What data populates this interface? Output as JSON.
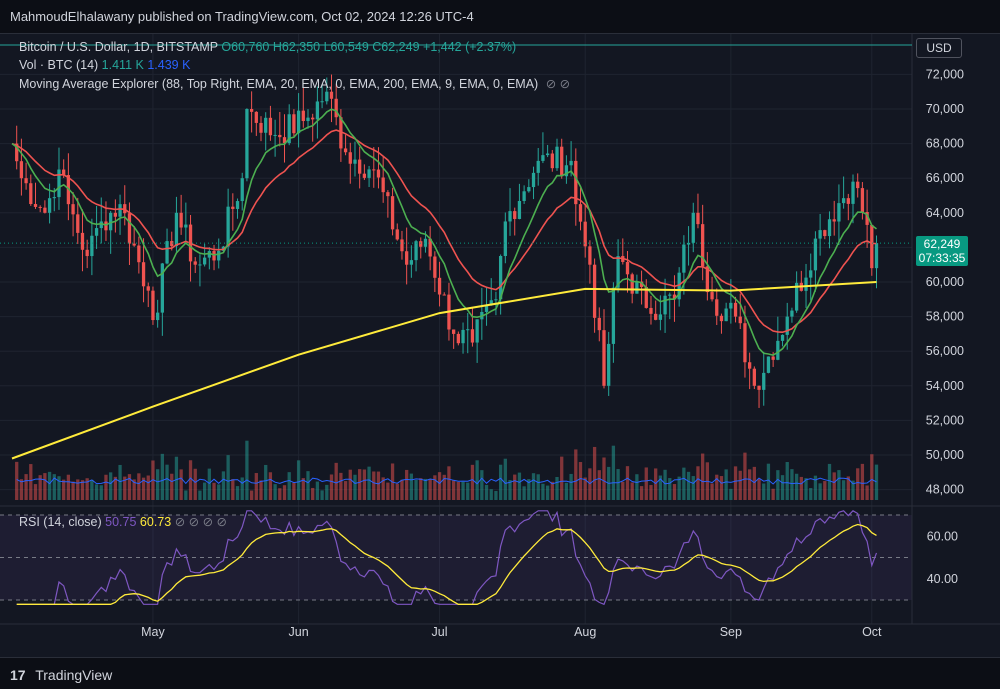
{
  "header": {
    "published_by": "MahmoudElhalawany published on TradingView.com, Oct 02, 2024 12:26 UTC-4"
  },
  "legend": {
    "symbol": "Bitcoin / U.S. Dollar, 1D, BITSTAMP",
    "open": "O60,760",
    "high": "H62,350",
    "low": "L60,549",
    "close": "C62,249",
    "change": "+1,442 (+2.37%)",
    "vol_label": "Vol · BTC (14)",
    "vol_a": "1.411 K",
    "vol_b": "1.439 K",
    "ma_label": "Moving Average Explorer (88, Top Right, EMA, 20, EMA, 0, EMA, 200, EMA, 9, EMA, 0, EMA)",
    "eye_icons": "⊘ ⊘"
  },
  "rsi_legend": {
    "label": "RSI (14, close)",
    "rsi": "50.75",
    "ma": "60.73",
    "eye_icons": "⊘ ⊘ ⊘ ⊘"
  },
  "currency": "USD",
  "last_price": "62,249",
  "countdown": "07:33:35",
  "footer": {
    "brand": "TradingView"
  },
  "colors": {
    "up": "#26a69a",
    "down": "#ef5350",
    "ema20": "#ef5350",
    "ema9": "#4caf50",
    "ema200": "#ffeb3b",
    "rsi": "#7e57c2",
    "rsi_ma": "#ffeb3b",
    "volume_ma": "#2962ff"
  },
  "chart_data": {
    "type": "candlestick",
    "y_ticks": [
      "72,000",
      "70,000",
      "68,000",
      "66,000",
      "64,000",
      "62,000",
      "60,000",
      "58,000",
      "56,000",
      "54,000",
      "52,000",
      "50,000",
      "48,000"
    ],
    "ylim": [
      47300,
      73000
    ],
    "x_ticks": [
      "May",
      "Jun",
      "Jul",
      "Aug",
      "Sep",
      "Oct"
    ],
    "rsi_ticks": [
      "60.00",
      "40.00"
    ],
    "rsi_band": [
      30,
      70
    ],
    "daily_close_path": [
      {
        "date": "2024-04-01",
        "close": 68000
      },
      {
        "date": "2024-04-03",
        "close": 66000
      },
      {
        "date": "2024-04-08",
        "close": 64000
      },
      {
        "date": "2024-04-11",
        "close": 66500
      },
      {
        "date": "2024-04-13",
        "close": 64500
      },
      {
        "date": "2024-04-17",
        "close": 61500
      },
      {
        "date": "2024-04-20",
        "close": 63500
      },
      {
        "date": "2024-04-24",
        "close": 64500
      },
      {
        "date": "2024-04-30",
        "close": 59500
      },
      {
        "date": "2024-05-01",
        "close": 57800
      },
      {
        "date": "2024-05-06",
        "close": 64000
      },
      {
        "date": "2024-05-10",
        "close": 61000
      },
      {
        "date": "2024-05-15",
        "close": 61800
      },
      {
        "date": "2024-05-20",
        "close": 66000
      },
      {
        "date": "2024-05-21",
        "close": 70000
      },
      {
        "date": "2024-05-27",
        "close": 68500
      },
      {
        "date": "2024-06-03",
        "close": 69500
      },
      {
        "date": "2024-06-07",
        "close": 71000
      },
      {
        "date": "2024-06-11",
        "close": 67500
      },
      {
        "date": "2024-06-17",
        "close": 66500
      },
      {
        "date": "2024-06-24",
        "close": 61000
      },
      {
        "date": "2024-06-28",
        "close": 62500
      },
      {
        "date": "2024-07-04",
        "close": 57000
      },
      {
        "date": "2024-07-08",
        "close": 56500
      },
      {
        "date": "2024-07-13",
        "close": 59000
      },
      {
        "date": "2024-07-15",
        "close": 63500
      },
      {
        "date": "2024-07-22",
        "close": 67000
      },
      {
        "date": "2024-07-29",
        "close": 67000
      },
      {
        "date": "2024-07-30",
        "close": 64500
      },
      {
        "date": "2024-08-02",
        "close": 61000
      },
      {
        "date": "2024-08-05",
        "close": 54000
      },
      {
        "date": "2024-08-08",
        "close": 61500
      },
      {
        "date": "2024-08-14",
        "close": 58500
      },
      {
        "date": "2024-08-20",
        "close": 59000
      },
      {
        "date": "2024-08-24",
        "close": 64000
      },
      {
        "date": "2024-08-28",
        "close": 59000
      },
      {
        "date": "2024-09-02",
        "close": 58000
      },
      {
        "date": "2024-09-06",
        "close": 54000
      },
      {
        "date": "2024-09-13",
        "close": 58000
      },
      {
        "date": "2024-09-20",
        "close": 63000
      },
      {
        "date": "2024-09-27",
        "close": 65800
      },
      {
        "date": "2024-09-30",
        "close": 63300
      },
      {
        "date": "2024-10-01",
        "close": 60800
      },
      {
        "date": "2024-10-02",
        "close": 62249
      }
    ],
    "ema200_path": [
      {
        "date": "2024-04-01",
        "value": 49800
      },
      {
        "date": "2024-05-01",
        "value": 52800
      },
      {
        "date": "2024-06-01",
        "value": 55800
      },
      {
        "date": "2024-07-01",
        "value": 58200
      },
      {
        "date": "2024-08-01",
        "value": 59600
      },
      {
        "date": "2024-09-01",
        "value": 59500
      },
      {
        "date": "2024-10-02",
        "value": 60000
      }
    ]
  }
}
